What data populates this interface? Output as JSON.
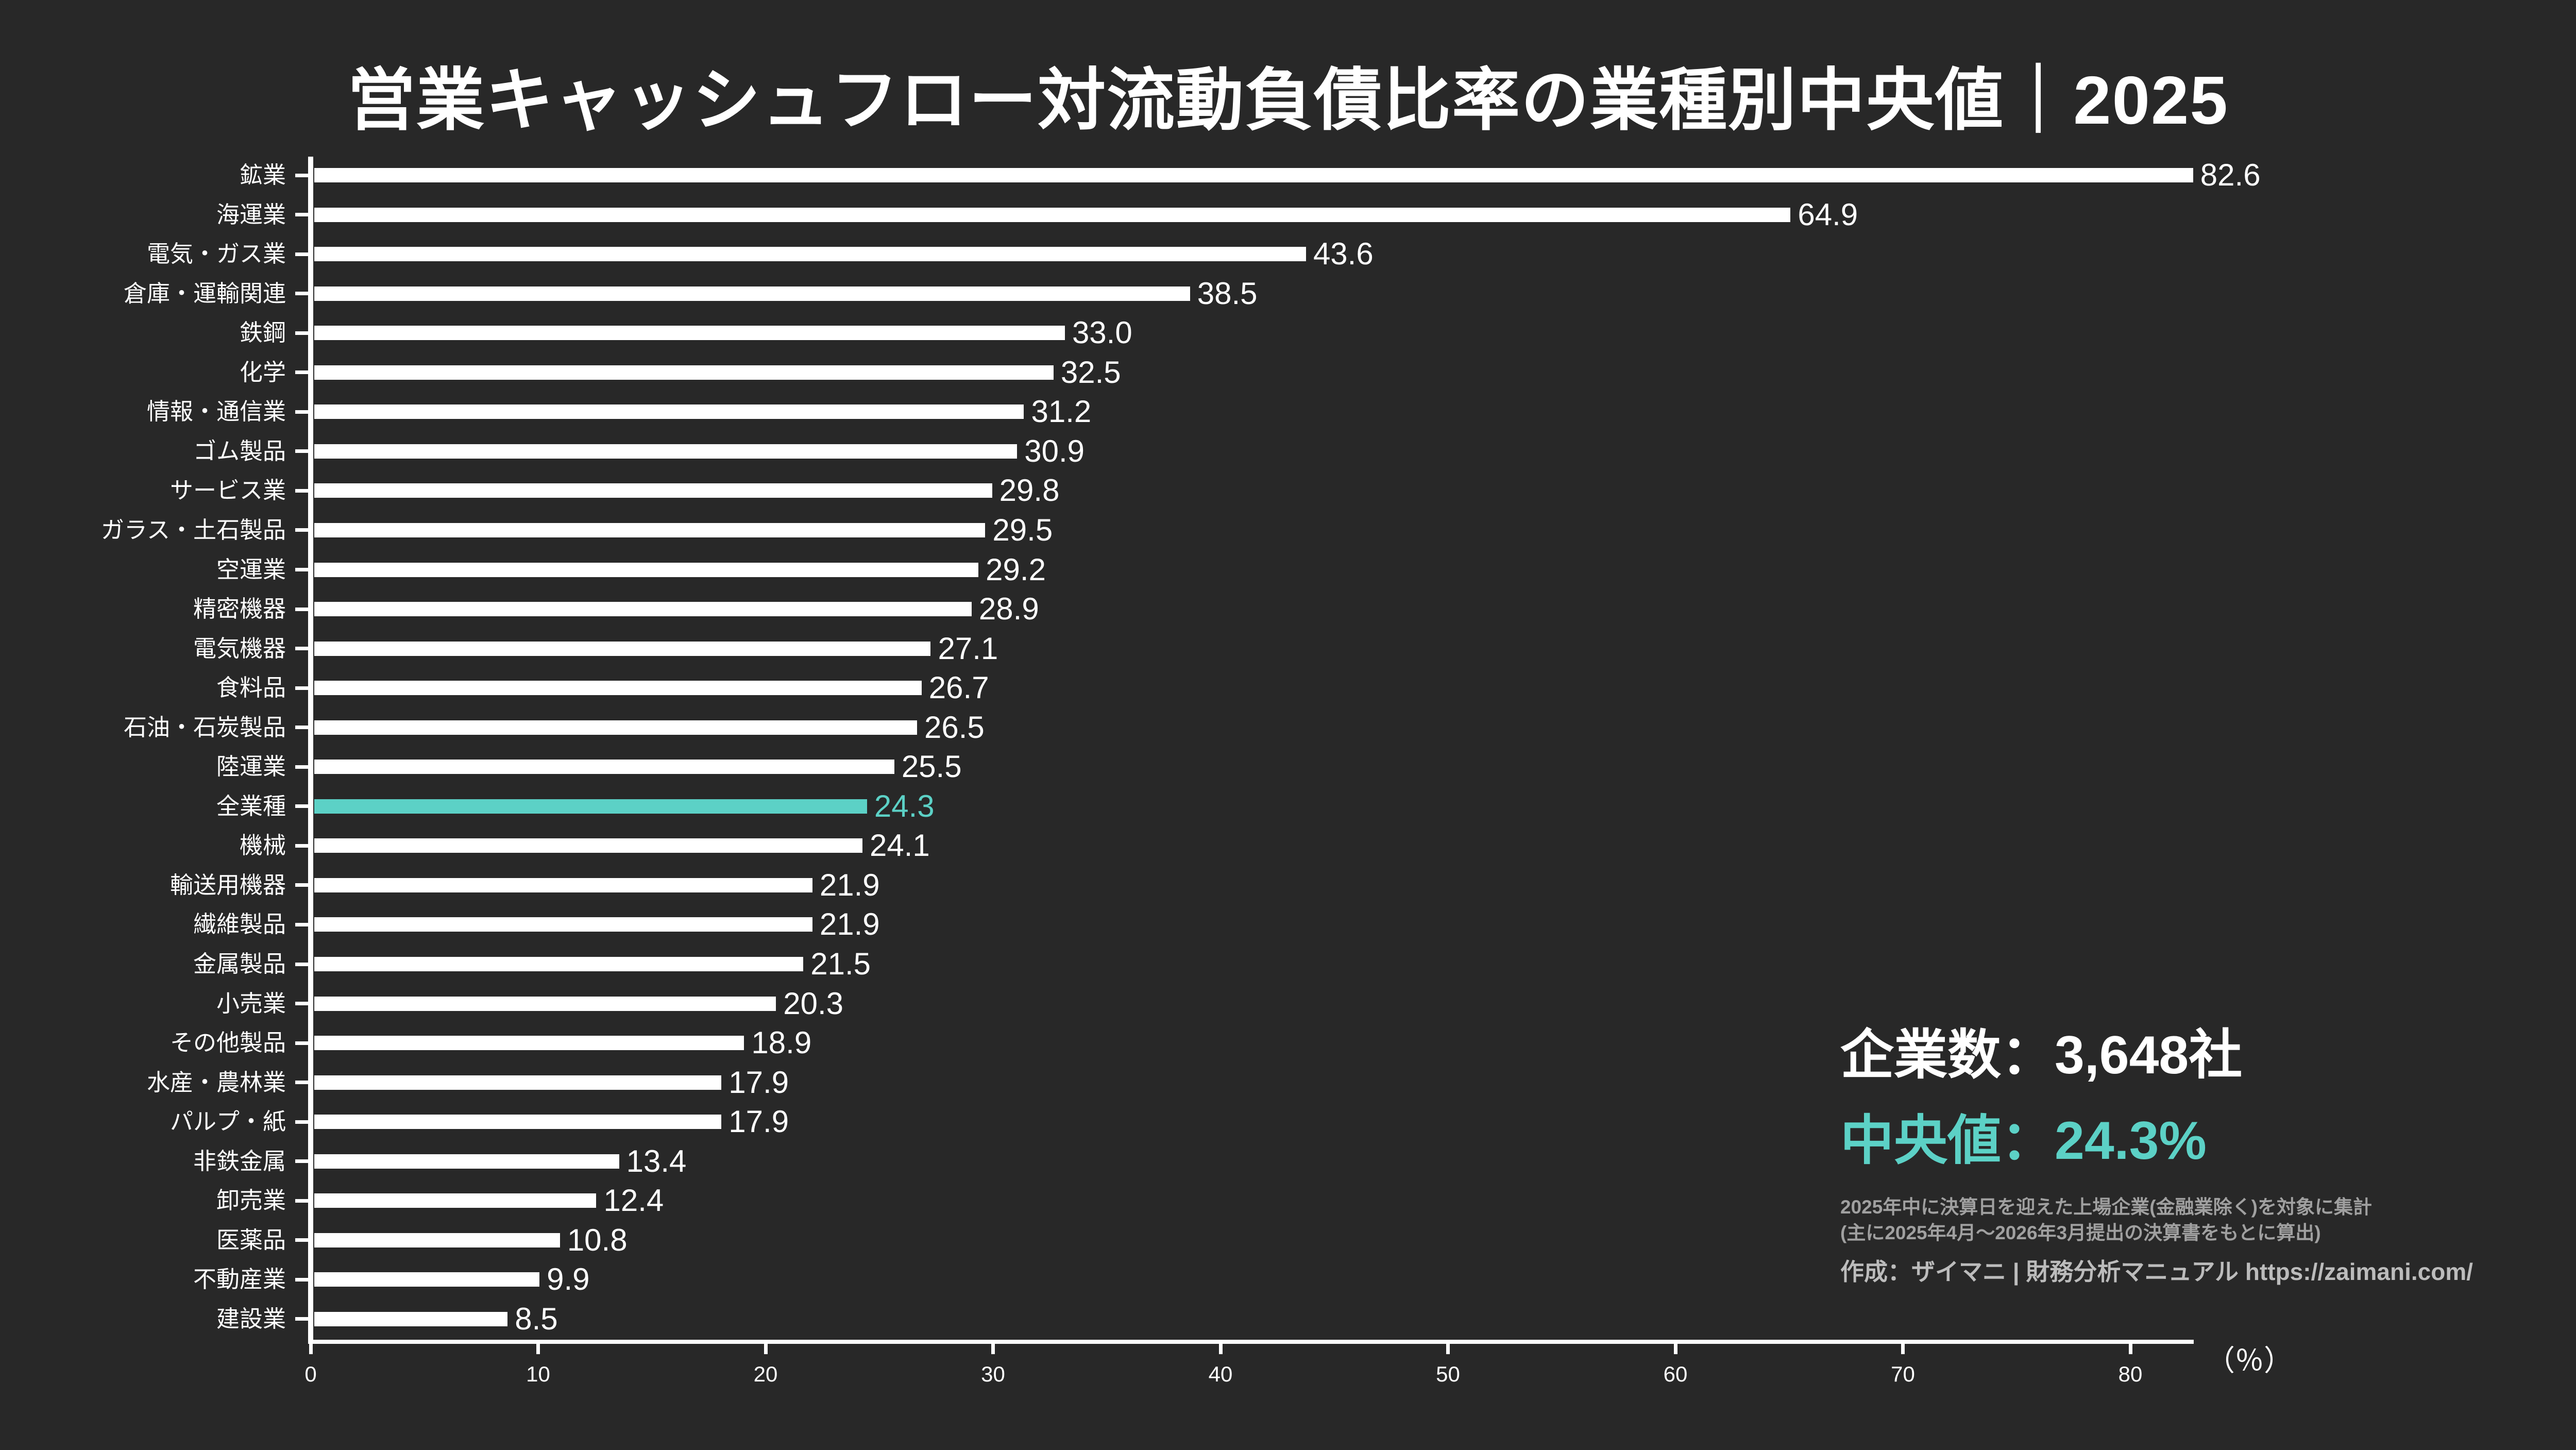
{
  "title": "営業キャッシュフロー対流動負債比率の業種別中央値｜2025",
  "chart_data": {
    "type": "bar",
    "orientation": "horizontal",
    "title": "営業キャッシュフロー対流動負債比率の業種別中央値｜2025",
    "categories": [
      "鉱業",
      "海運業",
      "電気・ガス業",
      "倉庫・運輸関連",
      "鉄鋼",
      "化学",
      "情報・通信業",
      "ゴム製品",
      "サービス業",
      "ガラス・土石製品",
      "空運業",
      "精密機器",
      "電気機器",
      "食料品",
      "石油・石炭製品",
      "陸運業",
      "全業種",
      "機械",
      "輸送用機器",
      "繊維製品",
      "金属製品",
      "小売業",
      "その他製品",
      "水産・農林業",
      "パルプ・紙",
      "非鉄金属",
      "卸売業",
      "医薬品",
      "不動産業",
      "建設業"
    ],
    "values": [
      82.6,
      64.9,
      43.6,
      38.5,
      33.0,
      32.5,
      31.2,
      30.9,
      29.8,
      29.5,
      29.2,
      28.9,
      27.1,
      26.7,
      26.5,
      25.5,
      24.3,
      24.1,
      21.9,
      21.9,
      21.5,
      20.3,
      18.9,
      17.9,
      17.9,
      13.4,
      12.4,
      10.8,
      9.9,
      8.5
    ],
    "highlight_category": "全業種",
    "value_label_decimals": 1,
    "x_ticks": [
      0,
      10,
      20,
      30,
      40,
      50,
      60,
      70,
      80
    ],
    "xlim": [
      0,
      88
    ],
    "xlabel": "（％）",
    "grid": "off",
    "legend": "none"
  },
  "stats": {
    "companies": "企業数：3,648社",
    "median": "中央値：24.3%"
  },
  "notes": {
    "line1": "2025年中に決算日を迎えた上場企業(金融業除く)を対象に集計",
    "line2": "(主に2025年4月〜2026年3月提出の決算書をもとに算出)"
  },
  "credit": "作成：ザイマニ | 財務分析マニュアル https://zaimani.com/",
  "colors": {
    "background": "#282828",
    "bar": "#ffffff",
    "highlight": "#5cd1c6",
    "text": "#ffffff",
    "note_gray": "#a0a0a0",
    "credit_gray": "#bcbcbc"
  }
}
